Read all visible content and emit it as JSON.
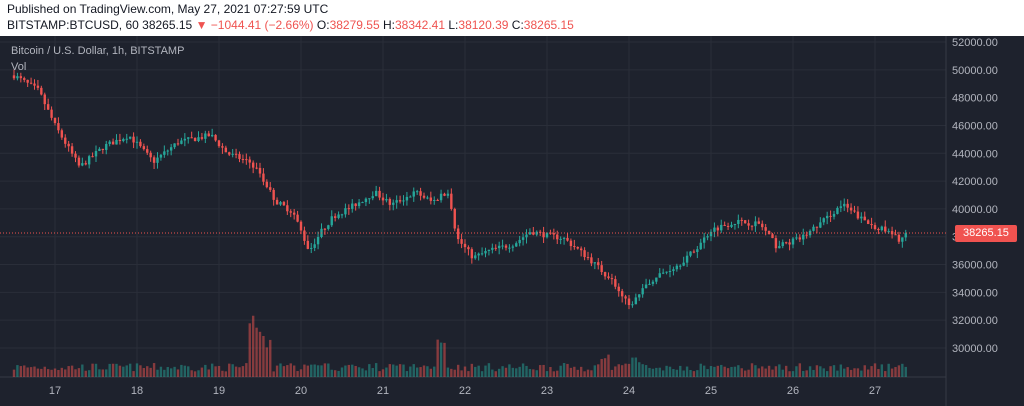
{
  "header": {
    "published": "Published on TradingView.com, May 27, 2021 07:27:59 UTC",
    "symbol": "BITSTAMP:BTCUSD, 60",
    "last": "38265.15",
    "change_arrow": "▼",
    "change": "−1044.41 (−2.66%)",
    "o_label": "O:",
    "o": "38279.55",
    "h_label": "H:",
    "h": "38342.41",
    "l_label": "L:",
    "l": "38120.39",
    "c_label": "C:",
    "c": "38265.15"
  },
  "overlay": {
    "title": "Bitcoin / U.S. Dollar, 1h, BITSTAMP",
    "vol_label": "Vol"
  },
  "colors": {
    "background": "#1e222d",
    "grid": "#2a2e39",
    "up": "#26a69a",
    "down": "#ef5350",
    "text": "#b2b5be",
    "price_line": "#ef5350"
  },
  "chart_data": {
    "type": "candlestick",
    "interval": "1h",
    "x_tick_labels": [
      "17",
      "18",
      "19",
      "20",
      "21",
      "22",
      "23",
      "24",
      "25",
      "26",
      "27"
    ],
    "y_tick_labels": [
      "30000.00",
      "32000.00",
      "34000.00",
      "36000.00",
      "38000.00",
      "40000.00",
      "42000.00",
      "44000.00",
      "46000.00",
      "48000.00",
      "50000.00",
      "52000.00"
    ],
    "ylim": [
      28000,
      52000
    ],
    "current_price": 38265.15,
    "current_price_label": "38265.15",
    "volume_panel": true,
    "grid": true,
    "ohlc_path": {
      "note_days": "day index 0 = day labeled 17",
      "keypoints": [
        {
          "day": -0.5,
          "price": 49600
        },
        {
          "day": -0.2,
          "price": 48500
        },
        {
          "day": 0.0,
          "price": 46000
        },
        {
          "day": 0.3,
          "price": 43000
        },
        {
          "day": 0.6,
          "price": 44500
        },
        {
          "day": 0.9,
          "price": 45300
        },
        {
          "day": 1.2,
          "price": 43400
        },
        {
          "day": 1.5,
          "price": 44800
        },
        {
          "day": 1.9,
          "price": 45300
        },
        {
          "day": 2.1,
          "price": 44000
        },
        {
          "day": 2.4,
          "price": 43300
        },
        {
          "day": 2.7,
          "price": 40500
        },
        {
          "day": 2.9,
          "price": 39800
        },
        {
          "day": 3.1,
          "price": 37000
        },
        {
          "day": 3.25,
          "price": 38400
        },
        {
          "day": 3.4,
          "price": 39500
        },
        {
          "day": 3.6,
          "price": 40100
        },
        {
          "day": 3.9,
          "price": 41200
        },
        {
          "day": 4.1,
          "price": 40300
        },
        {
          "day": 4.4,
          "price": 41200
        },
        {
          "day": 4.6,
          "price": 40500
        },
        {
          "day": 4.8,
          "price": 41300
        },
        {
          "day": 4.9,
          "price": 37900
        },
        {
          "day": 5.1,
          "price": 36500
        },
        {
          "day": 5.3,
          "price": 37000
        },
        {
          "day": 5.6,
          "price": 37500
        },
        {
          "day": 5.8,
          "price": 38400
        },
        {
          "day": 6.0,
          "price": 38100
        },
        {
          "day": 6.2,
          "price": 37900
        },
        {
          "day": 6.5,
          "price": 36500
        },
        {
          "day": 6.8,
          "price": 34800
        },
        {
          "day": 7.0,
          "price": 33000
        },
        {
          "day": 7.3,
          "price": 35000
        },
        {
          "day": 7.6,
          "price": 36000
        },
        {
          "day": 7.8,
          "price": 37000
        },
        {
          "day": 8.0,
          "price": 38500
        },
        {
          "day": 8.3,
          "price": 39100
        },
        {
          "day": 8.6,
          "price": 38900
        },
        {
          "day": 8.8,
          "price": 37300
        },
        {
          "day": 9.1,
          "price": 37900
        },
        {
          "day": 9.3,
          "price": 38800
        },
        {
          "day": 9.6,
          "price": 40300
        },
        {
          "day": 9.9,
          "price": 39000
        },
        {
          "day": 10.1,
          "price": 38500
        },
        {
          "day": 10.3,
          "price": 37800
        },
        {
          "day": 10.4,
          "price": 38265
        }
      ]
    },
    "volume_spikes_by_day": [
      {
        "day": 2.5,
        "level": 0.75
      },
      {
        "day": 2.4,
        "level": 0.95
      },
      {
        "day": 2.6,
        "level": 0.55
      },
      {
        "day": 4.7,
        "level": 0.6
      },
      {
        "day": 6.7,
        "level": 0.35
      },
      {
        "day": 7.1,
        "level": 0.3
      }
    ]
  }
}
